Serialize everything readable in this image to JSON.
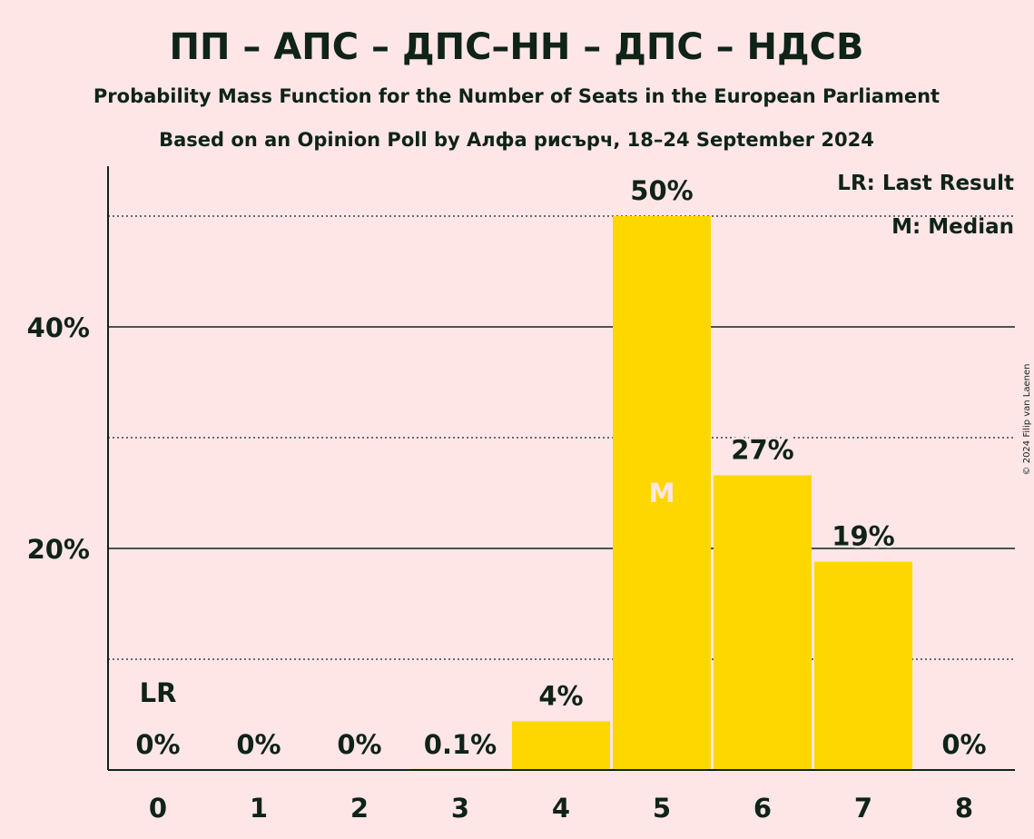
{
  "title": "ПП – АПС – ДПС–НН – ДПС – НДСВ",
  "subtitle1": "Probability Mass Function for the Number of Seats in the European Parliament",
  "subtitle2": "Based on an Opinion Poll by Алфа рисърч, 18–24 September 2024",
  "copyright": "© 2024 Filip van Laenen",
  "legend": {
    "last_result": "LR: Last Result",
    "median": "M: Median"
  },
  "chart_data": {
    "type": "bar",
    "categories": [
      "0",
      "1",
      "2",
      "3",
      "4",
      "5",
      "6",
      "7",
      "8"
    ],
    "values": [
      0,
      0,
      0,
      0.1,
      4.4,
      50,
      26.6,
      18.8,
      0
    ],
    "data_labels": [
      "0%",
      "0%",
      "0%",
      "0.1%",
      "4%",
      "50%",
      "27%",
      "19%",
      "0%"
    ],
    "yticks": [
      20,
      40
    ],
    "ytick_labels": [
      "20%",
      "40%"
    ],
    "minor_gridlines": [
      10,
      30,
      50
    ],
    "ylim": [
      0,
      54.5
    ],
    "last_result_index": 0,
    "last_result_marker": "LR",
    "median_index": 5,
    "median_marker": "M",
    "bar_color": "#FFD700",
    "median_label_color": "#FFE6E6",
    "text_color": "#0F2318",
    "background": "#FFE6E6",
    "legend_position": "top-right"
  }
}
